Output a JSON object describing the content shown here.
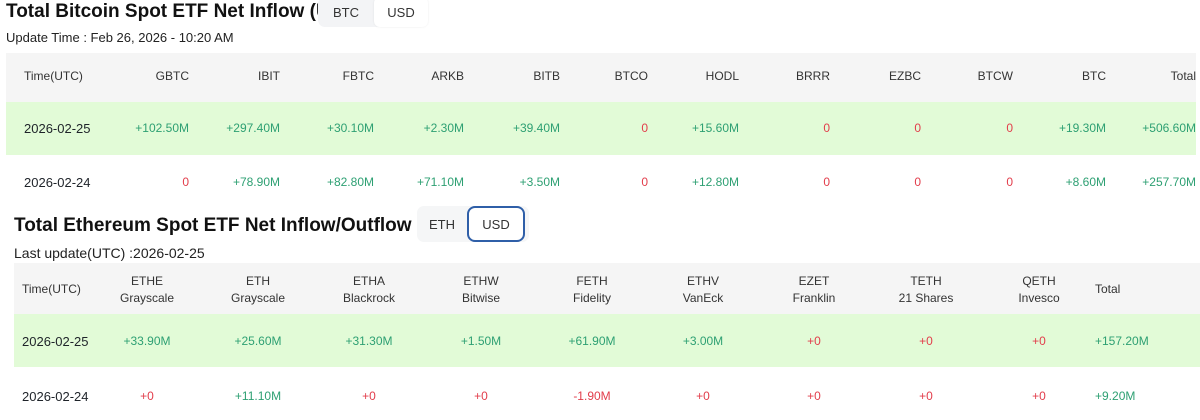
{
  "btc": {
    "title": "Total Bitcoin Spot ETF Net Inflow (USD)",
    "toggle": [
      "BTC",
      "USD"
    ],
    "toggle_selected": "USD",
    "update": "Update Time : Feb 26, 2026 - 10:20 AM",
    "columns": [
      "Time(UTC)",
      "GBTC",
      "IBIT",
      "FBTC",
      "ARKB",
      "BITB",
      "BTCO",
      "HODL",
      "BRRR",
      "EZBC",
      "BTCW",
      "BTC",
      "Total"
    ],
    "rows": [
      [
        "2026-02-25",
        "+102.50M",
        "+297.40M",
        "+30.10M",
        "+2.30M",
        "+39.40M",
        "0",
        "+15.60M",
        "0",
        "0",
        "0",
        "+19.30M",
        "+506.60M"
      ],
      [
        "2026-02-24",
        "0",
        "+78.90M",
        "+82.80M",
        "+71.10M",
        "+3.50M",
        "0",
        "+12.80M",
        "0",
        "0",
        "0",
        "+8.60M",
        "+257.70M"
      ]
    ]
  },
  "eth": {
    "title": "Total Ethereum Spot ETF Net Inflow/Outflow (USD)",
    "toggle": [
      "ETH",
      "USD"
    ],
    "toggle_selected": "USD",
    "update": "Last update(UTC) :2026-02-25",
    "columns": [
      {
        "ticker": "Time(UTC)",
        "issuer": ""
      },
      {
        "ticker": "ETHE",
        "issuer": "Grayscale"
      },
      {
        "ticker": "ETH",
        "issuer": "Grayscale"
      },
      {
        "ticker": "ETHA",
        "issuer": "Blackrock"
      },
      {
        "ticker": "ETHW",
        "issuer": "Bitwise"
      },
      {
        "ticker": "FETH",
        "issuer": "Fidelity"
      },
      {
        "ticker": "ETHV",
        "issuer": "VanEck"
      },
      {
        "ticker": "EZET",
        "issuer": "Franklin"
      },
      {
        "ticker": "TETH",
        "issuer": "21 Shares"
      },
      {
        "ticker": "QETH",
        "issuer": "Invesco"
      },
      {
        "ticker": "Total",
        "issuer": ""
      }
    ],
    "rows": [
      [
        "2026-02-25",
        "+33.90M",
        "+25.60M",
        "+31.30M",
        "+1.50M",
        "+61.90M",
        "+3.00M",
        "+0",
        "+0",
        "+0",
        "+157.20M"
      ],
      [
        "2026-02-24",
        "+0",
        "+11.10M",
        "+0",
        "+0",
        "-1.90M",
        "+0",
        "+0",
        "+0",
        "+0",
        "+9.20M"
      ]
    ]
  },
  "colors": {
    "positive": "#2ea073",
    "zero_negative": "#e23d4b",
    "highlight_row": "#e2fbd7",
    "header_bg": "#f5f5f5",
    "toggle_border": "#2f5fa8"
  }
}
